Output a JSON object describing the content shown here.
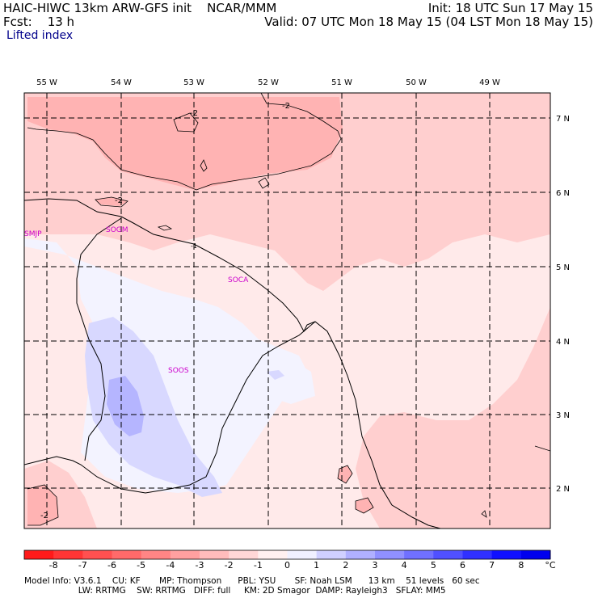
{
  "header": {
    "line1_left": "HAIC-HIWC 13km ARW-GFS init    NCAR/MMM",
    "line1_right": "Init: 18 UTC Sun 17 May 15",
    "line2_left": "Fcst:    13 h",
    "line2_right": "Valid: 07 UTC Mon 18 May 15 (04 LST Mon 18 May 15)",
    "field": "Lifted index"
  },
  "map": {
    "longitude_labels": [
      "55 W",
      "54 W",
      "53 W",
      "52 W",
      "51 W",
      "50 W",
      "49 W"
    ],
    "latitude_labels": [
      "7 N",
      "6 N",
      "5 N",
      "4 N",
      "3 N",
      "2 N"
    ],
    "stations": [
      "SMJP",
      "SOGM",
      "SOCA",
      "SOOS"
    ],
    "contour_labels": [
      "-2",
      "-2",
      "-2",
      "-1",
      "-2"
    ]
  },
  "colorbar": {
    "labels": [
      "-8",
      "-7",
      "-6",
      "-5",
      "-4",
      "-3",
      "-2",
      "-1",
      "0",
      "1",
      "2",
      "3",
      "4",
      "5",
      "6",
      "7",
      "8"
    ],
    "unit": "°C",
    "colors": [
      "#ff1a1a",
      "#ff3535",
      "#ff5050",
      "#ff6a6a",
      "#ff8585",
      "#ffa0a0",
      "#ffbcbc",
      "#ffd7d7",
      "#fff0f0",
      "#f0f0ff",
      "#d0d0ff",
      "#b0b0ff",
      "#9090ff",
      "#7070ff",
      "#5050ff",
      "#3030ff",
      "#1010ff",
      "#0000ee"
    ]
  },
  "footer": {
    "line1": "Model Info: V3.6.1    CU: KF       MP: Thompson      PBL: YSU       SF: Noah LSM      13 km    51 levels   60 sec",
    "line2": "                    LW: RRTMG    SW: RRTMG   DIFF: full     KM: 2D Smagor  DAMP: Rayleigh3   SFLAY: MM5"
  }
}
